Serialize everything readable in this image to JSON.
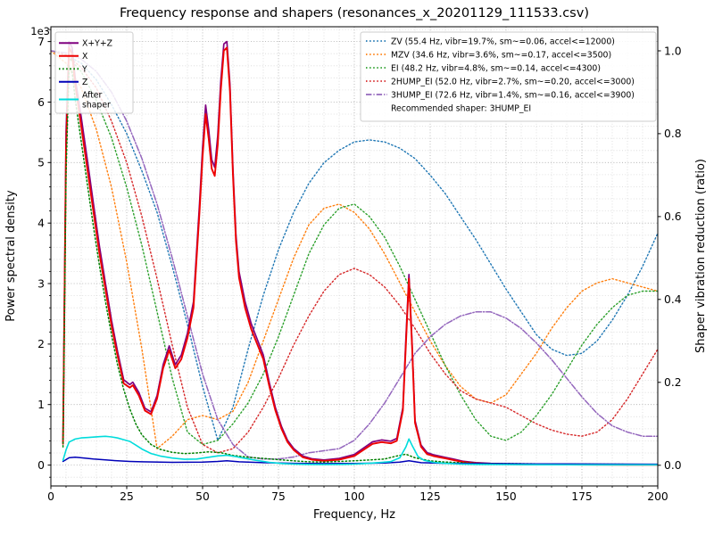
{
  "chart_data": {
    "type": "line",
    "title": "Frequency response and shapers (resonances_x_20201129_111533.csv)",
    "xlabel": "Frequency, Hz",
    "ylabel_left": "Power spectral density",
    "ylabel_right": "Shaper vibration reduction (ratio)",
    "y_left_offset_text": "1e3",
    "xlim": [
      0,
      200
    ],
    "ylim_left": [
      -345,
      7245
    ],
    "ylim_right": [
      -0.05,
      1.058
    ],
    "grid": {
      "major_color": "#a8a8a8",
      "minor_color": "#d8d8d8",
      "on": true
    },
    "legend_positions": {
      "psd_legend": "upper-left",
      "shaper_legend": "upper-right"
    },
    "xticks": {
      "values": [
        0,
        25,
        50,
        75,
        100,
        125,
        150,
        175,
        200
      ],
      "labels": [
        "0",
        "25",
        "50",
        "75",
        "100",
        "125",
        "150",
        "175",
        "200"
      ],
      "minor_step": 5
    },
    "yticks_left": {
      "values": [
        0,
        1000,
        2000,
        3000,
        4000,
        5000,
        6000,
        7000
      ],
      "labels": [
        "0",
        "1",
        "2",
        "3",
        "4",
        "5",
        "6",
        "7"
      ],
      "minor_step": 200
    },
    "yticks_right": {
      "values": [
        0.0,
        0.2,
        0.4,
        0.6,
        0.8,
        1.0
      ],
      "labels": [
        "0.0",
        "0.2",
        "0.4",
        "0.6",
        "0.8",
        "1.0"
      ]
    },
    "recommended_shaper_note": "Recommended shaper: 3HUMP_EI",
    "psd_series": [
      {
        "name": "x-plus-y-plus-z",
        "label": "X+Y+Z",
        "color": "#800080",
        "style": "solid",
        "width": 1.7,
        "x": [
          4,
          5,
          6,
          7,
          8,
          10,
          12,
          14,
          16,
          18,
          20,
          22,
          24,
          26,
          27,
          29,
          31,
          33,
          35,
          37,
          39,
          41,
          43,
          45,
          47,
          49,
          50,
          51,
          52,
          53,
          54,
          55,
          56,
          57,
          58,
          59,
          60,
          61,
          62,
          64,
          66,
          68,
          70,
          72,
          74,
          76,
          78,
          80,
          83,
          86,
          90,
          95,
          100,
          103,
          106,
          109,
          112,
          114,
          116,
          117,
          118,
          119,
          120,
          122,
          124,
          126,
          128,
          130,
          133,
          136,
          140,
          145,
          150,
          160,
          170,
          180,
          190,
          200
        ],
        "y": [
          380,
          5500,
          7000,
          6900,
          6400,
          5750,
          5050,
          4330,
          3620,
          3000,
          2390,
          1870,
          1410,
          1330,
          1370,
          1200,
          940,
          880,
          1150,
          1660,
          1970,
          1660,
          1820,
          2180,
          2700,
          4330,
          5250,
          5950,
          5550,
          5050,
          4920,
          5450,
          6350,
          6960,
          7000,
          6300,
          4900,
          3800,
          3200,
          2700,
          2340,
          2080,
          1820,
          1360,
          950,
          640,
          410,
          275,
          150,
          105,
          85,
          110,
          175,
          280,
          385,
          415,
          395,
          440,
          950,
          2100,
          3150,
          2060,
          740,
          330,
          205,
          172,
          150,
          128,
          95,
          62,
          40,
          28,
          22,
          16,
          13,
          10,
          9,
          8
        ]
      },
      {
        "name": "x",
        "label": "X",
        "color": "#ee0000",
        "style": "solid",
        "width": 1.9,
        "x": [
          4,
          5,
          6,
          7,
          8,
          10,
          12,
          14,
          16,
          18,
          20,
          22,
          24,
          26,
          27,
          29,
          31,
          33,
          35,
          37,
          39,
          41,
          43,
          45,
          47,
          49,
          50,
          51,
          52,
          53,
          54,
          55,
          56,
          57,
          58,
          59,
          60,
          61,
          62,
          64,
          66,
          68,
          70,
          72,
          74,
          76,
          78,
          80,
          83,
          86,
          90,
          95,
          100,
          103,
          106,
          109,
          112,
          114,
          116,
          117,
          118,
          119,
          120,
          122,
          124,
          126,
          128,
          130,
          133,
          136,
          140,
          145,
          150,
          160,
          170,
          180,
          190,
          200
        ],
        "y": [
          350,
          5200,
          6900,
          6800,
          6300,
          5600,
          4900,
          4200,
          3500,
          2900,
          2300,
          1800,
          1350,
          1280,
          1320,
          1150,
          900,
          840,
          1100,
          1600,
          1900,
          1600,
          1750,
          2100,
          2600,
          4200,
          5100,
          5800,
          5400,
          4900,
          4780,
          5300,
          6200,
          6850,
          6900,
          6200,
          4800,
          3700,
          3100,
          2600,
          2250,
          2000,
          1750,
          1300,
          900,
          600,
          380,
          250,
          130,
          90,
          70,
          90,
          150,
          250,
          350,
          380,
          360,
          400,
          900,
          2000,
          3080,
          2000,
          700,
          300,
          180,
          150,
          130,
          110,
          80,
          50,
          30,
          20,
          15,
          10,
          8,
          6,
          5,
          5
        ]
      },
      {
        "name": "y",
        "label": "Y",
        "color": "#008000",
        "style": "dotted",
        "width": 1.5,
        "x": [
          4,
          5,
          6,
          7,
          8,
          10,
          12,
          14,
          16,
          18,
          20,
          22,
          24,
          26,
          28,
          30,
          33,
          36,
          40,
          44,
          48,
          52,
          56,
          60,
          65,
          70,
          75,
          80,
          85,
          90,
          95,
          100,
          105,
          110,
          114,
          117,
          120,
          125,
          130,
          140,
          150,
          160,
          180,
          200
        ],
        "y": [
          300,
          4800,
          6600,
          6500,
          6050,
          5350,
          4650,
          3950,
          3300,
          2700,
          2150,
          1650,
          1250,
          930,
          680,
          500,
          340,
          260,
          210,
          190,
          200,
          220,
          205,
          160,
          130,
          110,
          90,
          70,
          55,
          50,
          60,
          70,
          85,
          100,
          150,
          180,
          120,
          70,
          50,
          30,
          25,
          20,
          15,
          12
        ]
      },
      {
        "name": "z",
        "label": "Z",
        "color": "#0000b8",
        "style": "solid",
        "width": 1.5,
        "x": [
          4,
          6,
          8,
          10,
          14,
          18,
          22,
          26,
          30,
          40,
          50,
          55,
          58,
          62,
          70,
          80,
          90,
          100,
          110,
          115,
          118,
          122,
          130,
          140,
          160,
          180,
          200
        ],
        "y": [
          60,
          120,
          130,
          120,
          100,
          85,
          70,
          60,
          55,
          45,
          50,
          60,
          70,
          55,
          40,
          30,
          25,
          28,
          35,
          50,
          70,
          40,
          30,
          25,
          20,
          18,
          15
        ]
      },
      {
        "name": "after-shaper",
        "label": "After shaper",
        "label_lines": [
          "After",
          "shaper"
        ],
        "color": "#00dcdc",
        "style": "solid",
        "width": 1.6,
        "x": [
          4,
          5,
          6,
          8,
          10,
          12,
          14,
          16,
          18,
          20,
          22,
          24,
          26,
          28,
          30,
          33,
          36,
          40,
          44,
          48,
          52,
          55,
          58,
          61,
          64,
          68,
          72,
          76,
          80,
          85,
          90,
          95,
          100,
          105,
          109,
          112,
          115,
          117,
          118,
          119,
          121,
          123,
          126,
          130,
          135,
          140,
          150,
          160,
          180,
          200
        ],
        "y": [
          80,
          250,
          380,
          430,
          450,
          455,
          462,
          470,
          476,
          466,
          448,
          420,
          392,
          330,
          265,
          192,
          150,
          116,
          96,
          100,
          130,
          152,
          162,
          140,
          110,
          76,
          46,
          26,
          18,
          12,
          10,
          12,
          18,
          30,
          44,
          58,
          120,
          300,
          432,
          330,
          140,
          80,
          46,
          28,
          18,
          12,
          8,
          6,
          5,
          4
        ]
      }
    ],
    "shaper_x": [
      0,
      5,
      10,
      15,
      20,
      25,
      30,
      35,
      40,
      45,
      50,
      55,
      60,
      65,
      70,
      75,
      80,
      85,
      90,
      95,
      100,
      105,
      110,
      115,
      120,
      125,
      130,
      135,
      140,
      145,
      150,
      155,
      160,
      165,
      170,
      175,
      180,
      185,
      190,
      195,
      200
    ],
    "shaper_series": [
      {
        "name": "zv",
        "label": "ZV (55.4 Hz, vibr=19.7%, sm~=0.06, accel<=12000)",
        "color": "#1f77b4",
        "style": "dotted",
        "width": 1.4,
        "y": [
          1.0,
          0.99,
          0.97,
          0.93,
          0.87,
          0.8,
          0.71,
          0.61,
          0.48,
          0.34,
          0.19,
          0.06,
          0.14,
          0.28,
          0.41,
          0.52,
          0.61,
          0.68,
          0.73,
          0.76,
          0.78,
          0.785,
          0.78,
          0.765,
          0.74,
          0.7,
          0.655,
          0.6,
          0.545,
          0.485,
          0.425,
          0.37,
          0.315,
          0.28,
          0.265,
          0.27,
          0.3,
          0.35,
          0.41,
          0.48,
          0.56
        ]
      },
      {
        "name": "mzv",
        "label": "MZV (34.6 Hz, vibr=3.6%, sm~=0.17, accel<=3500)",
        "color": "#ff7f0e",
        "style": "dotted",
        "width": 1.4,
        "y": [
          1.0,
          0.97,
          0.91,
          0.81,
          0.67,
          0.49,
          0.28,
          0.04,
          0.07,
          0.11,
          0.12,
          0.11,
          0.13,
          0.2,
          0.3,
          0.4,
          0.5,
          0.58,
          0.62,
          0.63,
          0.61,
          0.57,
          0.51,
          0.44,
          0.37,
          0.3,
          0.24,
          0.19,
          0.16,
          0.15,
          0.17,
          0.22,
          0.27,
          0.33,
          0.38,
          0.42,
          0.44,
          0.45,
          0.44,
          0.43,
          0.42
        ]
      },
      {
        "name": "ei",
        "label": "EI (48.2 Hz, vibr=4.8%, sm~=0.14, accel<=4300)",
        "color": "#2ca02c",
        "style": "dotted",
        "width": 1.4,
        "y": [
          1.0,
          0.99,
          0.95,
          0.88,
          0.79,
          0.67,
          0.53,
          0.37,
          0.21,
          0.08,
          0.05,
          0.06,
          0.1,
          0.15,
          0.22,
          0.31,
          0.41,
          0.51,
          0.58,
          0.62,
          0.63,
          0.6,
          0.55,
          0.48,
          0.4,
          0.32,
          0.24,
          0.17,
          0.11,
          0.07,
          0.06,
          0.08,
          0.12,
          0.17,
          0.23,
          0.29,
          0.34,
          0.38,
          0.41,
          0.42,
          0.42
        ]
      },
      {
        "name": "2hump_ei",
        "label": "2HUMP_EI (52.0 Hz, vibr=2.7%, sm~=0.20, accel<=3000)",
        "color": "#d62728",
        "style": "dotted",
        "width": 1.4,
        "y": [
          1.0,
          0.99,
          0.96,
          0.91,
          0.83,
          0.73,
          0.6,
          0.45,
          0.29,
          0.14,
          0.05,
          0.03,
          0.04,
          0.08,
          0.14,
          0.21,
          0.29,
          0.36,
          0.42,
          0.46,
          0.475,
          0.46,
          0.43,
          0.385,
          0.33,
          0.27,
          0.22,
          0.18,
          0.16,
          0.15,
          0.14,
          0.12,
          0.1,
          0.085,
          0.075,
          0.07,
          0.08,
          0.11,
          0.16,
          0.22,
          0.28
        ]
      },
      {
        "name": "3hump_ei",
        "label": "3HUMP_EI (72.6 Hz, vibr=1.4%, sm~=0.16, accel<=3900)",
        "color": "#9467bd",
        "style": "dashdot",
        "width": 1.5,
        "y": [
          1.0,
          0.995,
          0.98,
          0.95,
          0.9,
          0.83,
          0.74,
          0.63,
          0.5,
          0.36,
          0.22,
          0.11,
          0.05,
          0.02,
          0.015,
          0.015,
          0.02,
          0.03,
          0.035,
          0.04,
          0.06,
          0.1,
          0.15,
          0.21,
          0.27,
          0.31,
          0.34,
          0.36,
          0.37,
          0.37,
          0.355,
          0.33,
          0.295,
          0.255,
          0.21,
          0.165,
          0.125,
          0.095,
          0.08,
          0.07,
          0.07
        ]
      }
    ]
  }
}
